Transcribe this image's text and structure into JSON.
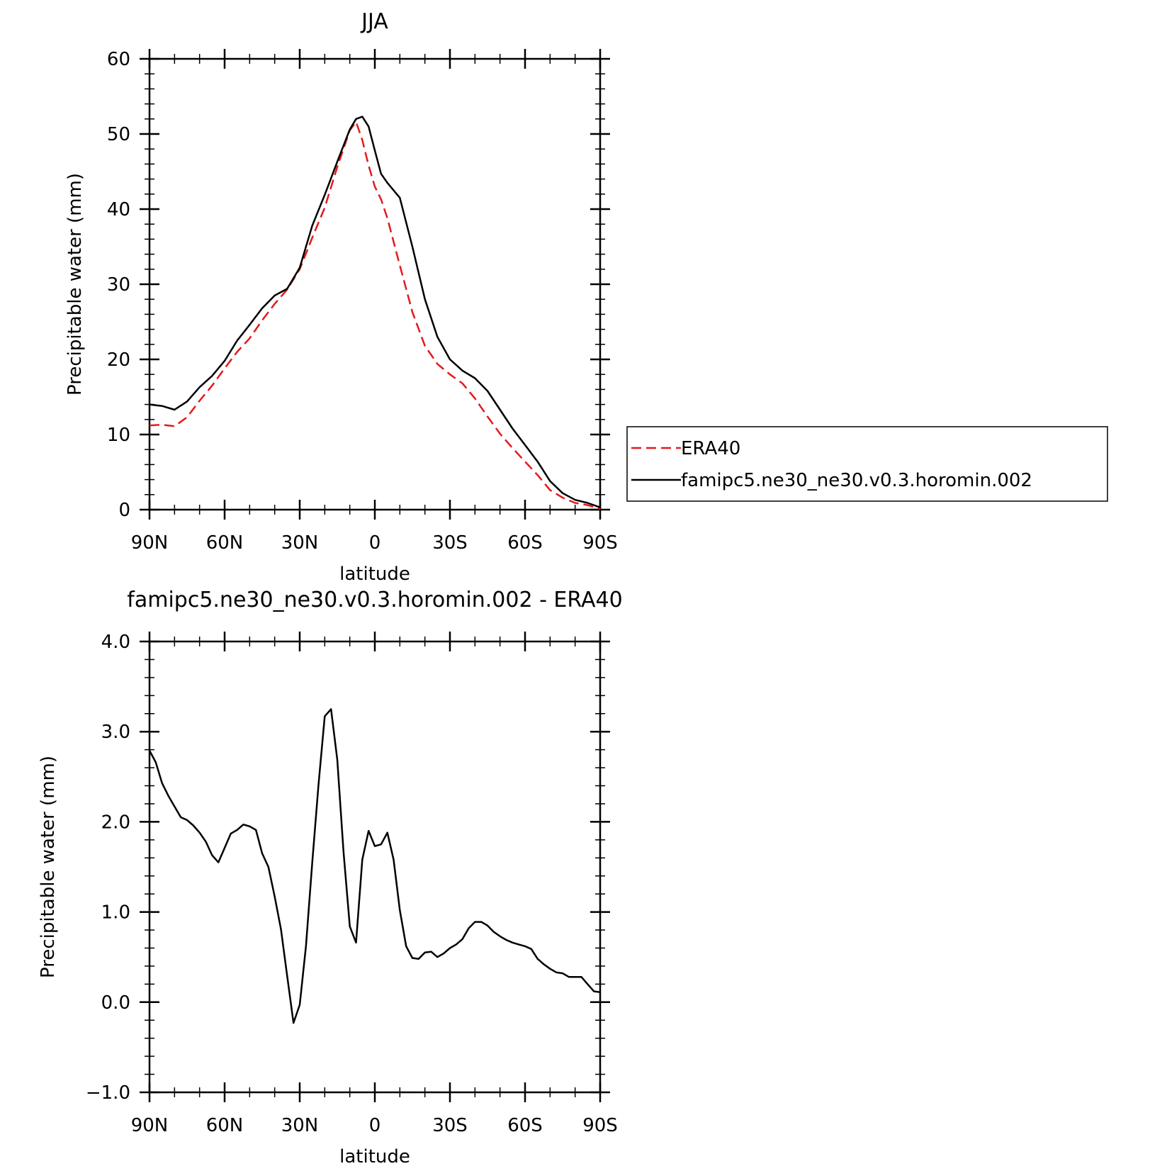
{
  "chart_data": [
    {
      "type": "line",
      "title": "JJA",
      "xlabel": "latitude",
      "ylabel": "Precipitable water (mm)",
      "xlim": [
        90,
        -90
      ],
      "ylim": [
        0,
        60
      ],
      "yticks": [
        0,
        10,
        20,
        30,
        40,
        50,
        60
      ],
      "ytick_labels": [
        "0",
        "10",
        "20",
        "30",
        "40",
        "50",
        "60"
      ],
      "xticks": [
        90,
        60,
        30,
        0,
        -30,
        -60,
        -90
      ],
      "xtick_labels": [
        "90N",
        "60N",
        "30N",
        "0",
        "30S",
        "60S",
        "90S"
      ],
      "grid": false,
      "legend_position": "right",
      "series": [
        {
          "name": "ERA40",
          "color": "#e31a1c",
          "dash": "dashed",
          "x": [
            90,
            85,
            80,
            75,
            70,
            65,
            60,
            55,
            50,
            45,
            40,
            35,
            30,
            25,
            20,
            15,
            10,
            7.5,
            5,
            2.5,
            0,
            -2.5,
            -5,
            -10,
            -15,
            -20,
            -25,
            -30,
            -35,
            -40,
            -45,
            -50,
            -55,
            -60,
            -65,
            -70,
            -75,
            -80,
            -85,
            -90
          ],
          "y": [
            11.2,
            11.3,
            11.1,
            12.3,
            14.5,
            16.5,
            18.8,
            21.0,
            22.8,
            25.2,
            27.4,
            29.3,
            32.0,
            36.2,
            40.2,
            45.6,
            50.5,
            51.6,
            49.2,
            45.8,
            43.0,
            41.3,
            38.8,
            32.5,
            26.3,
            21.8,
            19.4,
            18.0,
            16.8,
            14.8,
            12.4,
            10.1,
            8.2,
            6.4,
            4.6,
            2.6,
            1.6,
            0.9,
            0.6,
            0.1
          ]
        },
        {
          "name": "famipc5.ne30_ne30.v0.3.horomin.002",
          "color": "#000000",
          "dash": "solid",
          "x": [
            90,
            85,
            80,
            75,
            70,
            65,
            60,
            55,
            50,
            45,
            40,
            35,
            30,
            25,
            20,
            15,
            10,
            7.5,
            5,
            2.5,
            0,
            -2.5,
            -5,
            -10,
            -15,
            -20,
            -25,
            -30,
            -35,
            -40,
            -45,
            -50,
            -55,
            -60,
            -65,
            -70,
            -75,
            -80,
            -85,
            -90
          ],
          "y": [
            14.0,
            13.8,
            13.3,
            14.4,
            16.3,
            17.8,
            19.8,
            22.5,
            24.6,
            26.8,
            28.5,
            29.4,
            32.2,
            37.8,
            41.9,
            46.3,
            50.6,
            52.0,
            52.3,
            51.0,
            47.8,
            44.7,
            43.5,
            41.5,
            35.0,
            28.0,
            23.0,
            20.0,
            18.5,
            17.5,
            15.8,
            13.3,
            10.8,
            8.6,
            6.4,
            3.8,
            2.2,
            1.3,
            0.9,
            0.3
          ]
        }
      ]
    },
    {
      "type": "line",
      "title": "famipc5.ne30_ne30.v0.3.horomin.002 - ERA40",
      "xlabel": "latitude",
      "ylabel": "Precipitable water (mm)",
      "xlim": [
        90,
        -90
      ],
      "ylim": [
        -1.0,
        4.0
      ],
      "yticks": [
        -1.0,
        0.0,
        1.0,
        2.0,
        3.0,
        4.0
      ],
      "ytick_labels": [
        "−1.0",
        "0.0",
        "1.0",
        "2.0",
        "3.0",
        "4.0"
      ],
      "xticks": [
        90,
        60,
        30,
        0,
        -30,
        -60,
        -90
      ],
      "xtick_labels": [
        "90N",
        "60N",
        "30N",
        "0",
        "30S",
        "60S",
        "90S"
      ],
      "grid": false,
      "series": [
        {
          "color": "#000000",
          "dash": "solid",
          "x": [
            90,
            87.5,
            85,
            82.5,
            80,
            77.5,
            75,
            72.5,
            70,
            67.5,
            65,
            62.5,
            60,
            57.5,
            55,
            52.5,
            50,
            47.5,
            45,
            42.5,
            40,
            37.5,
            35,
            32.5,
            30,
            27.5,
            25,
            22.5,
            20,
            17.5,
            15,
            12.5,
            10,
            7.5,
            5,
            2.5,
            0,
            -2.5,
            -5,
            -7.5,
            -10,
            -12.5,
            -15,
            -17.5,
            -20,
            -22.5,
            -25,
            -27.5,
            -30,
            -32.5,
            -35,
            -37.5,
            -40,
            -42.5,
            -45,
            -47.5,
            -50,
            -52.5,
            -55,
            -57.5,
            -60,
            -62.5,
            -65,
            -67.5,
            -70,
            -72.5,
            -75,
            -77.5,
            -80,
            -82.5,
            -85,
            -87.5,
            -90
          ],
          "y": [
            2.79,
            2.66,
            2.43,
            2.29,
            2.17,
            2.05,
            2.02,
            1.96,
            1.88,
            1.78,
            1.63,
            1.55,
            1.71,
            1.87,
            1.91,
            1.97,
            1.95,
            1.91,
            1.65,
            1.5,
            1.17,
            0.81,
            0.29,
            -0.23,
            -0.03,
            0.62,
            1.55,
            2.41,
            3.17,
            3.25,
            2.69,
            1.67,
            0.84,
            0.66,
            1.58,
            1.9,
            1.73,
            1.75,
            1.88,
            1.58,
            1.02,
            0.62,
            0.49,
            0.48,
            0.55,
            0.56,
            0.5,
            0.54,
            0.6,
            0.64,
            0.7,
            0.82,
            0.89,
            0.89,
            0.85,
            0.78,
            0.73,
            0.69,
            0.66,
            0.64,
            0.62,
            0.59,
            0.48,
            0.42,
            0.37,
            0.33,
            0.32,
            0.28,
            0.28,
            0.28,
            0.2,
            0.12,
            0.11
          ]
        }
      ]
    }
  ]
}
